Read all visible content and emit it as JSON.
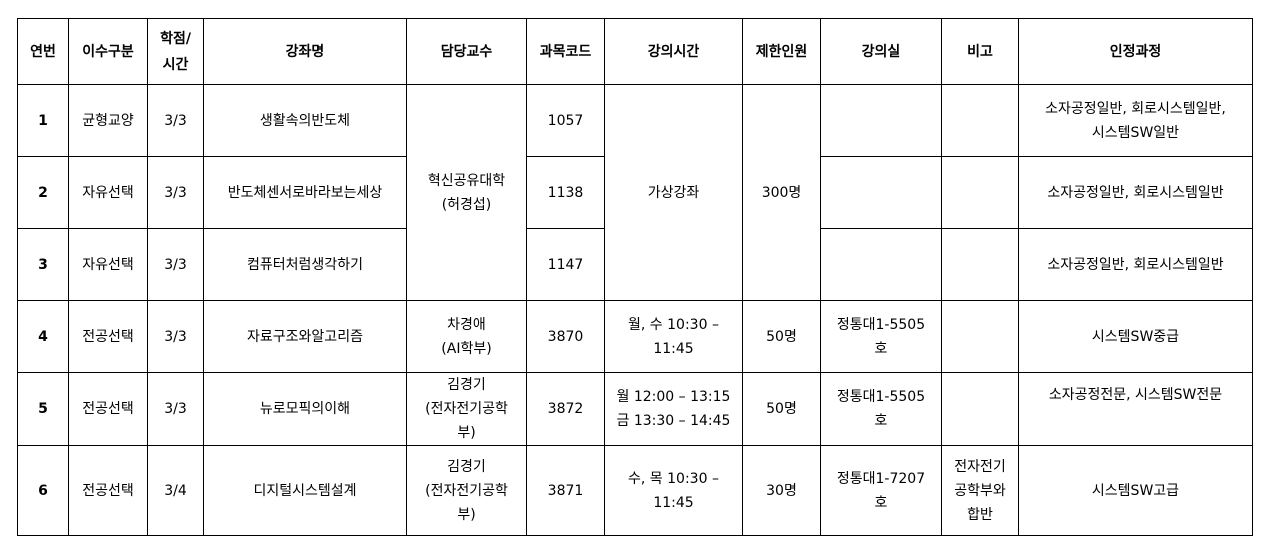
{
  "headers": [
    "연번",
    "이수구분",
    "학점/\n시간",
    "강좌명",
    "담당교수",
    "과목코드",
    "강의시간",
    "제한인원",
    "강의실",
    "비고",
    "인정과정"
  ],
  "rows": [
    {
      "no": "1",
      "type": "균형교양",
      "credit": "3/3",
      "name": "생활속의반도체",
      "professor": "혁신공유대학\n(허경섭)",
      "code": "1057",
      "time": "가상강좌",
      "limit": "300명",
      "room": "",
      "note": "",
      "track": "소자공정일반, 회로시스템일반,\n시스템SW일반"
    },
    {
      "no": "2",
      "type": "자유선택",
      "credit": "3/3",
      "name": "반도체센서로바라보는세상",
      "code": "1138",
      "room": "",
      "note": "",
      "track": "소자공정일반, 회로시스템일반"
    },
    {
      "no": "3",
      "type": "자유선택",
      "credit": "3/3",
      "name": "컴퓨터처럼생각하기",
      "code": "1147",
      "room": "",
      "note": "",
      "track": "소자공정일반, 회로시스템일반"
    },
    {
      "no": "4",
      "type": "전공선택",
      "credit": "3/3",
      "name": "자료구조와알고리즘",
      "professor": "차경애\n(AI학부)",
      "code": "3870",
      "time": "월, 수 10:30 –\n11:45",
      "limit": "50명",
      "room": "정통대1-5505\n호",
      "note": "",
      "track": "시스템SW중급"
    },
    {
      "no": "5",
      "type": "전공선택",
      "credit": "3/3",
      "name": "뉴로모픽의이해",
      "professor": "김경기\n(전자전기공학\n부)",
      "code": "3872",
      "time": "월 12:00 – 13:15\n금 13:30 – 14:45",
      "limit": "50명",
      "room": "정통대1-5505\n호",
      "note": "",
      "track": "소자공정전문, 시스템SW전문"
    },
    {
      "no": "6",
      "type": "전공선택",
      "credit": "3/4",
      "name": "디지털시스템설계",
      "professor": "김경기\n(전자전기공학\n부)",
      "code": "3871",
      "time": "수, 목 10:30 –\n11:45",
      "limit": "30명",
      "room": "정통대1-7207\n호",
      "note": "전자전기\n공학부와\n합반",
      "track": "시스템SW고급"
    }
  ]
}
